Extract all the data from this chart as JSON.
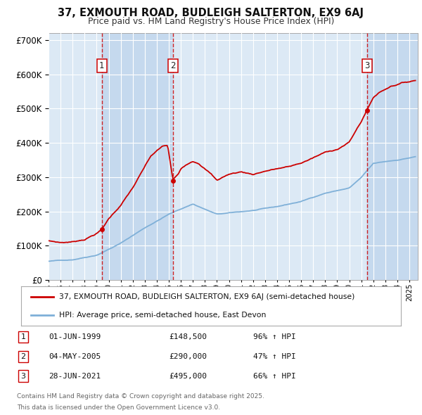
{
  "title_line1": "37, EXMOUTH ROAD, BUDLEIGH SALTERTON, EX9 6AJ",
  "title_line2": "Price paid vs. HM Land Registry's House Price Index (HPI)",
  "plot_bg_color": "#dce9f5",
  "grid_color": "#ffffff",
  "red_line_color": "#cc0000",
  "blue_line_color": "#7fb0d8",
  "vline_color": "#cc0000",
  "alt_band_color": "#c5d9ee",
  "purchases": [
    {
      "label": "1",
      "date_num": 1999.42,
      "price": 148500,
      "date_str": "01-JUN-1999",
      "pct": "96%",
      "dir": "↑"
    },
    {
      "label": "2",
      "date_num": 2005.34,
      "price": 290000,
      "date_str": "04-MAY-2005",
      "pct": "47%",
      "dir": "↑"
    },
    {
      "label": "3",
      "date_num": 2021.49,
      "price": 495000,
      "date_str": "28-JUN-2021",
      "pct": "66%",
      "dir": "↑"
    }
  ],
  "xmin": 1995.0,
  "xmax": 2025.7,
  "ymin": 0,
  "ymax": 720000,
  "yticks": [
    0,
    100000,
    200000,
    300000,
    400000,
    500000,
    600000,
    700000
  ],
  "legend_label_red": "37, EXMOUTH ROAD, BUDLEIGH SALTERTON, EX9 6AJ (semi-detached house)",
  "legend_label_blue": "HPI: Average price, semi-detached house, East Devon",
  "footer_line1": "Contains HM Land Registry data © Crown copyright and database right 2025.",
  "footer_line2": "This data is licensed under the Open Government Licence v3.0."
}
